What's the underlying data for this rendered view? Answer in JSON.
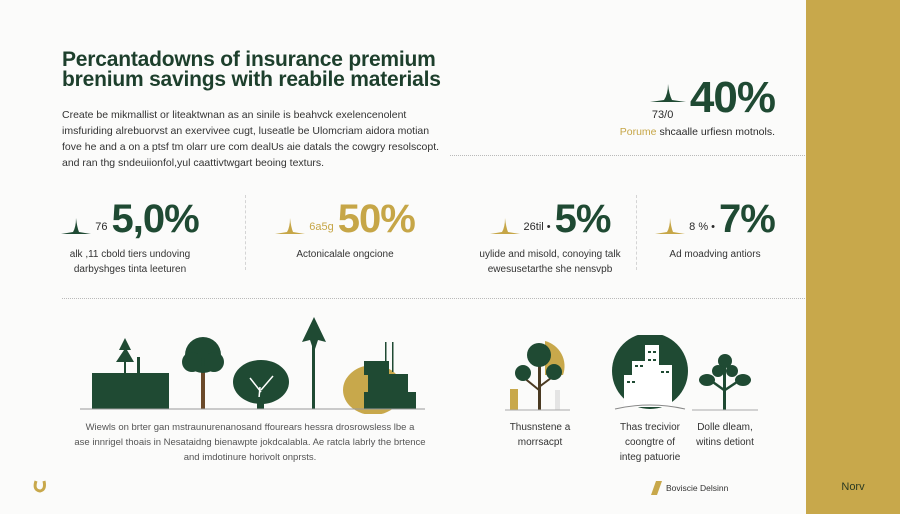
{
  "colors": {
    "green": "#1f4a33",
    "gold": "#c8a84b"
  },
  "title": [
    "Percantadowns of insurance premium",
    "brenium savings with reabile materials"
  ],
  "intro": [
    "Create be mikmallist or liteaktwnan as an sinile is beahvck exelencenolent",
    "imsfuriding alrebuorvst an exervivee cugt, luseatle be Ulomcriam aidora motian",
    "fove he and a on a ptsf tm olarr ure com dealUs aie datals the cowgry resolscopt.",
    "and ran thg sndeuiionfol,yul caattivtwgart beoing texturs."
  ],
  "hero": {
    "prefix": "73/0",
    "value": "40%",
    "caption_accent": "Porume",
    "caption": "shcaalle urfiesn motnols."
  },
  "stats": [
    {
      "prefix": "76",
      "value": "5,0%",
      "color": "green",
      "caption": [
        "alk ,11 cbold tiers undoving",
        "darbyshges tinta leeturen"
      ]
    },
    {
      "prefix": "6a5g",
      "value": "50%",
      "color": "gold",
      "caption": [
        "Actonicalale ongcione"
      ]
    },
    {
      "prefix": "26til •",
      "value": "5%",
      "color": "green",
      "caption": [
        "uylide and misold, conoying talk",
        "ewesusetarthe she nensvpb"
      ]
    },
    {
      "prefix": "8 % •",
      "value": "7%",
      "color": "green",
      "caption": [
        "Ad moadving antiors"
      ]
    }
  ],
  "illustration_caption": [
    "Wiewls on brter gan mstraunurenanosand ffourears hessra drosrowsless lbe a",
    "ase innrigel thoais in Nesataidng bienawpte jokdcalabla. Ae ratcla labrly the brtence",
    "and imdotinure horivolt onprsts."
  ],
  "features": [
    {
      "icon": "tree-icon",
      "caption": [
        "Thusnstene a",
        "morrsacpt"
      ]
    },
    {
      "icon": "city-buildings-icon",
      "caption": [
        "Thas trecivior",
        "coongtre of",
        "integ patuorie"
      ]
    },
    {
      "icon": "sprout-icon",
      "caption": [
        "Dolle dleam,",
        "witins detiont"
      ]
    }
  ],
  "footer": {
    "brand": "Boviscie Delsinn",
    "side_label": "Norv"
  }
}
